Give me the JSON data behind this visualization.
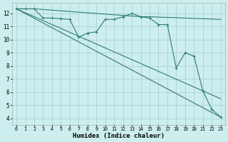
{
  "xlabel": "Humidex (Indice chaleur)",
  "bg_color": "#cceeee",
  "grid_color": "#aacccc",
  "line_color": "#2d7d6e",
  "xlim": [
    -0.5,
    23.5
  ],
  "ylim": [
    3.5,
    12.8
  ],
  "yticks": [
    4,
    5,
    6,
    7,
    8,
    9,
    10,
    11,
    12
  ],
  "xticks": [
    0,
    1,
    2,
    3,
    4,
    5,
    6,
    7,
    8,
    9,
    10,
    11,
    12,
    13,
    14,
    15,
    16,
    17,
    18,
    19,
    20,
    21,
    22,
    23
  ],
  "series": [
    {
      "x": [
        0,
        1,
        2,
        3,
        4,
        5,
        6,
        7,
        8,
        9,
        10,
        11,
        12,
        13,
        14,
        15,
        16,
        17,
        18,
        19,
        20,
        21,
        22,
        23
      ],
      "y": [
        12.35,
        12.35,
        12.35,
        12.3,
        12.25,
        12.2,
        12.15,
        12.1,
        12.05,
        12.0,
        11.95,
        11.9,
        11.85,
        11.8,
        11.75,
        11.75,
        11.72,
        11.7,
        11.68,
        11.65,
        11.62,
        11.6,
        11.58,
        11.55
      ],
      "marker": false
    },
    {
      "x": [
        0,
        23
      ],
      "y": [
        12.35,
        4.1
      ],
      "marker": false
    },
    {
      "x": [
        0,
        23
      ],
      "y": [
        12.35,
        5.5
      ],
      "marker": false
    },
    {
      "x": [
        0,
        1,
        2,
        3,
        4,
        5,
        6,
        7,
        8,
        9,
        10,
        11,
        12,
        13,
        14,
        15,
        16,
        17,
        18,
        19,
        20,
        21,
        22,
        23
      ],
      "y": [
        12.35,
        12.35,
        12.35,
        11.65,
        11.65,
        11.6,
        11.55,
        10.2,
        10.5,
        10.6,
        11.55,
        11.55,
        11.75,
        12.0,
        11.75,
        11.65,
        11.15,
        11.15,
        7.85,
        9.0,
        8.75,
        6.1,
        4.7,
        4.1
      ],
      "marker": true
    }
  ]
}
